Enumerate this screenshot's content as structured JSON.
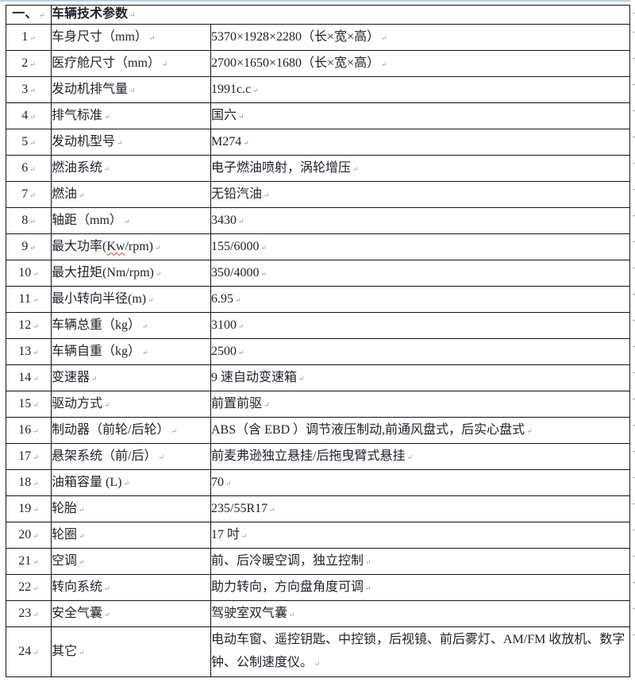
{
  "page": {
    "background": "#ffffff",
    "top_line_color": "#b5d3e7",
    "text_color": "#20232b",
    "border_color": "#141414",
    "paragraph_mark": "↵"
  },
  "table": {
    "header": {
      "no": "一、",
      "title": "车辆技术参数"
    },
    "rows": [
      {
        "no": "1",
        "label": "车身尺寸（mm）",
        "value": "5370×1928×2280（长×宽×高）"
      },
      {
        "no": "2",
        "label": "医疗舱尺寸（mm）",
        "value": "2700×1650×1680（长×宽×高）"
      },
      {
        "no": "3",
        "label": "发动机排气量",
        "value": "1991c.c"
      },
      {
        "no": "4",
        "label": "排气标准",
        "value": "国六"
      },
      {
        "no": "5",
        "label": "发动机型号",
        "value": "M274"
      },
      {
        "no": "6",
        "label": "燃油系统",
        "value": "电子燃油喷射，涡轮增压"
      },
      {
        "no": "7",
        "label": "燃油",
        "value": "无铅汽油"
      },
      {
        "no": "8",
        "label": "轴距（mm）",
        "value": "3430"
      },
      {
        "no": "9",
        "label": "最大功率(Kw/rpm)",
        "value": "155/6000",
        "misspell": "Kw"
      },
      {
        "no": "10",
        "label": "最大扭矩(Nm/rpm)",
        "value": "350/4000"
      },
      {
        "no": "11",
        "label": "最小转向半径(m)",
        "value": "6.95"
      },
      {
        "no": "12",
        "label": "车辆总重（kg）",
        "value": "3100"
      },
      {
        "no": "13",
        "label": "车辆自重（kg）",
        "value": "2500"
      },
      {
        "no": "14",
        "label": "变速器",
        "value": "9 速自动变速箱"
      },
      {
        "no": "15",
        "label": "驱动方式",
        "value": "前置前驱"
      },
      {
        "no": "16",
        "label": "制动器（前轮/后轮）",
        "value": "ABS（含 EBD ）调节液压制动,前通风盘式，后实心盘式"
      },
      {
        "no": "17",
        "label": "悬架系统（前/后）",
        "value": "前麦弗逊独立悬挂/后拖曳臂式悬挂"
      },
      {
        "no": "18",
        "label": "油箱容量 (L)",
        "value": "70"
      },
      {
        "no": "19",
        "label": "轮胎",
        "value": "235/55R17"
      },
      {
        "no": "20",
        "label": "轮圈",
        "value": "17 吋"
      },
      {
        "no": "21",
        "label": "空调",
        "value": "前、后冷暖空调，独立控制"
      },
      {
        "no": "22",
        "label": "转向系统",
        "value": "助力转向，方向盘角度可调"
      },
      {
        "no": "23",
        "label": "安全气囊",
        "value": "驾驶室双气囊"
      },
      {
        "no": "24",
        "label": "其它",
        "value": "电动车窗、遥控钥匙、中控锁，后视镜、前后雾灯、AM/FM 收放机、数字钟、公制速度仪。"
      }
    ]
  }
}
